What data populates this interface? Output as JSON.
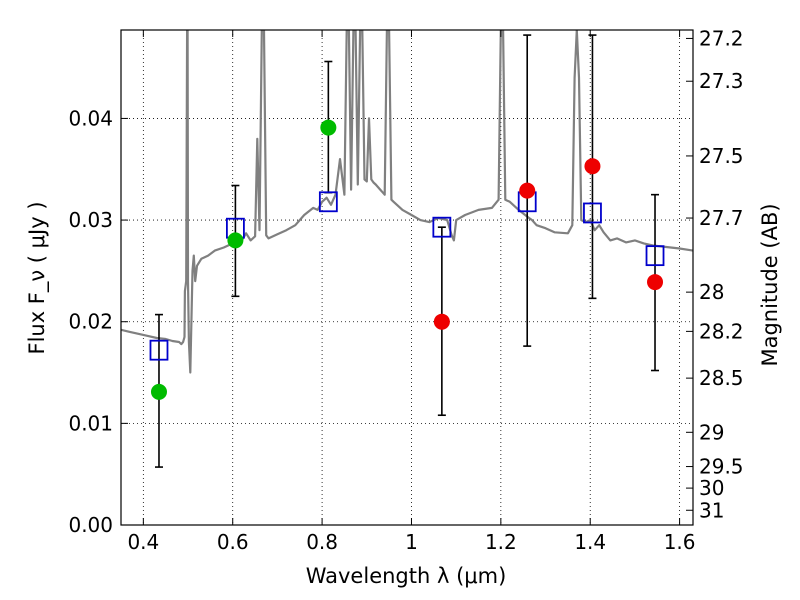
{
  "chart_data": {
    "type": "scatter",
    "xlabel": "Wavelength  λ (μm)",
    "ylabel": "Flux  F_ν  ( μJy )",
    "ylabel_right": "Magnitude (AB)",
    "xlim": [
      0.35,
      1.63
    ],
    "ylim": [
      0.0,
      0.0487
    ],
    "grid": true,
    "x_ticks": [
      0.4,
      0.6,
      0.8,
      1.0,
      1.2,
      1.4,
      1.6
    ],
    "x_tick_labels": [
      "0.4",
      "0.6",
      "0.8",
      "1",
      "1.2",
      "1.4",
      "1.6"
    ],
    "y_ticks": [
      0.0,
      0.01,
      0.02,
      0.03,
      0.04
    ],
    "y_tick_labels": [
      "0.00",
      "0.01",
      "0.02",
      "0.03",
      "0.04"
    ],
    "right_ticks": [
      {
        "flux": 0.04787,
        "label": "27.2"
      },
      {
        "flux": 0.04366,
        "label": "27.3"
      },
      {
        "flux": 0.03631,
        "label": "27.5"
      },
      {
        "flux": 0.0302,
        "label": "27.7"
      },
      {
        "flux": 0.02291,
        "label": "28"
      },
      {
        "flux": 0.01905,
        "label": "28.2"
      },
      {
        "flux": 0.01445,
        "label": "28.5"
      },
      {
        "flux": 0.00912,
        "label": "29"
      },
      {
        "flux": 0.00575,
        "label": "29.5"
      },
      {
        "flux": 0.00363,
        "label": "30"
      },
      {
        "flux": 0.00145,
        "label": "31"
      }
    ],
    "model_spectrum": {
      "color": "#808080",
      "x": [
        0.35,
        0.37,
        0.39,
        0.41,
        0.43,
        0.45,
        0.465,
        0.48,
        0.485,
        0.489,
        0.492,
        0.493,
        0.496,
        0.498,
        0.499,
        0.5,
        0.502,
        0.505,
        0.51,
        0.513,
        0.516,
        0.52,
        0.53,
        0.545,
        0.56,
        0.58,
        0.6,
        0.62,
        0.63,
        0.64,
        0.65,
        0.655,
        0.66,
        0.665,
        0.67,
        0.675,
        0.68,
        0.7,
        0.72,
        0.74,
        0.76,
        0.78,
        0.79,
        0.8,
        0.81,
        0.82,
        0.83,
        0.84,
        0.85,
        0.855,
        0.86,
        0.865,
        0.87,
        0.875,
        0.88,
        0.885,
        0.89,
        0.895,
        0.9,
        0.905,
        0.91,
        0.915,
        0.92,
        0.93,
        0.94,
        0.945,
        0.95,
        0.955,
        0.96,
        0.98,
        1.0,
        1.02,
        1.04,
        1.06,
        1.08,
        1.09,
        1.095,
        1.1,
        1.12,
        1.15,
        1.18,
        1.195,
        1.2,
        1.205,
        1.21,
        1.22,
        1.24,
        1.26,
        1.27,
        1.28,
        1.3,
        1.32,
        1.35,
        1.36,
        1.365,
        1.37,
        1.375,
        1.38,
        1.39,
        1.4,
        1.41,
        1.42,
        1.43,
        1.445,
        1.46,
        1.48,
        1.5,
        1.52,
        1.54,
        1.56,
        1.58,
        1.6,
        1.63
      ],
      "y": [
        0.0192,
        0.019,
        0.0188,
        0.0186,
        0.0184,
        0.0183,
        0.0181,
        0.018,
        0.0178,
        0.018,
        0.0185,
        0.023,
        0.024,
        0.0487,
        0.0487,
        0.024,
        0.018,
        0.015,
        0.025,
        0.0265,
        0.024,
        0.0255,
        0.0262,
        0.0265,
        0.027,
        0.0273,
        0.0277,
        0.028,
        0.0287,
        0.028,
        0.0284,
        0.038,
        0.029,
        0.0487,
        0.0487,
        0.0285,
        0.0282,
        0.0286,
        0.029,
        0.0295,
        0.0305,
        0.0312,
        0.031,
        0.0318,
        0.0322,
        0.0315,
        0.0325,
        0.036,
        0.0325,
        0.0487,
        0.0487,
        0.033,
        0.0487,
        0.0487,
        0.0335,
        0.0487,
        0.0487,
        0.034,
        0.0338,
        0.04,
        0.034,
        0.0337,
        0.0335,
        0.033,
        0.0325,
        0.0487,
        0.0487,
        0.032,
        0.0318,
        0.031,
        0.0305,
        0.03,
        0.0298,
        0.0302,
        0.03,
        0.0285,
        0.028,
        0.03,
        0.0305,
        0.031,
        0.0312,
        0.032,
        0.0487,
        0.0487,
        0.032,
        0.0318,
        0.031,
        0.0303,
        0.03,
        0.0295,
        0.0292,
        0.0288,
        0.0287,
        0.0295,
        0.044,
        0.0487,
        0.044,
        0.03,
        0.0298,
        0.03,
        0.029,
        0.0295,
        0.0288,
        0.028,
        0.0282,
        0.0278,
        0.028,
        0.0277,
        0.0275,
        0.0274,
        0.0273,
        0.0272,
        0.027
      ]
    },
    "model_photometry": {
      "marker": "open-square",
      "color": "#0000cc",
      "points": [
        {
          "x": 0.435,
          "y": 0.0172
        },
        {
          "x": 0.606,
          "y": 0.0292
        },
        {
          "x": 0.814,
          "y": 0.0318
        },
        {
          "x": 1.068,
          "y": 0.0293
        },
        {
          "x": 1.259,
          "y": 0.0318
        },
        {
          "x": 1.405,
          "y": 0.0307
        },
        {
          "x": 1.545,
          "y": 0.0265
        }
      ]
    },
    "observed_photometry": {
      "marker": "filled-circle",
      "error_color": "#000000",
      "points": [
        {
          "x": 0.435,
          "y": 0.0131,
          "ylow": 0.0057,
          "yhigh": 0.0207,
          "color": "#00bb00"
        },
        {
          "x": 0.606,
          "y": 0.028,
          "ylow": 0.0225,
          "yhigh": 0.0334,
          "color": "#00bb00"
        },
        {
          "x": 0.814,
          "y": 0.0391,
          "ylow": 0.0327,
          "yhigh": 0.0456,
          "color": "#00bb00"
        },
        {
          "x": 1.068,
          "y": 0.02,
          "ylow": 0.0108,
          "yhigh": 0.0293,
          "color": "#ee0000"
        },
        {
          "x": 1.259,
          "y": 0.0329,
          "ylow": 0.0176,
          "yhigh": 0.0482,
          "color": "#ee0000"
        },
        {
          "x": 1.405,
          "y": 0.0353,
          "ylow": 0.0223,
          "yhigh": 0.0482,
          "color": "#ee0000"
        },
        {
          "x": 1.545,
          "y": 0.0239,
          "ylow": 0.0152,
          "yhigh": 0.0325,
          "color": "#ee0000"
        }
      ]
    }
  }
}
